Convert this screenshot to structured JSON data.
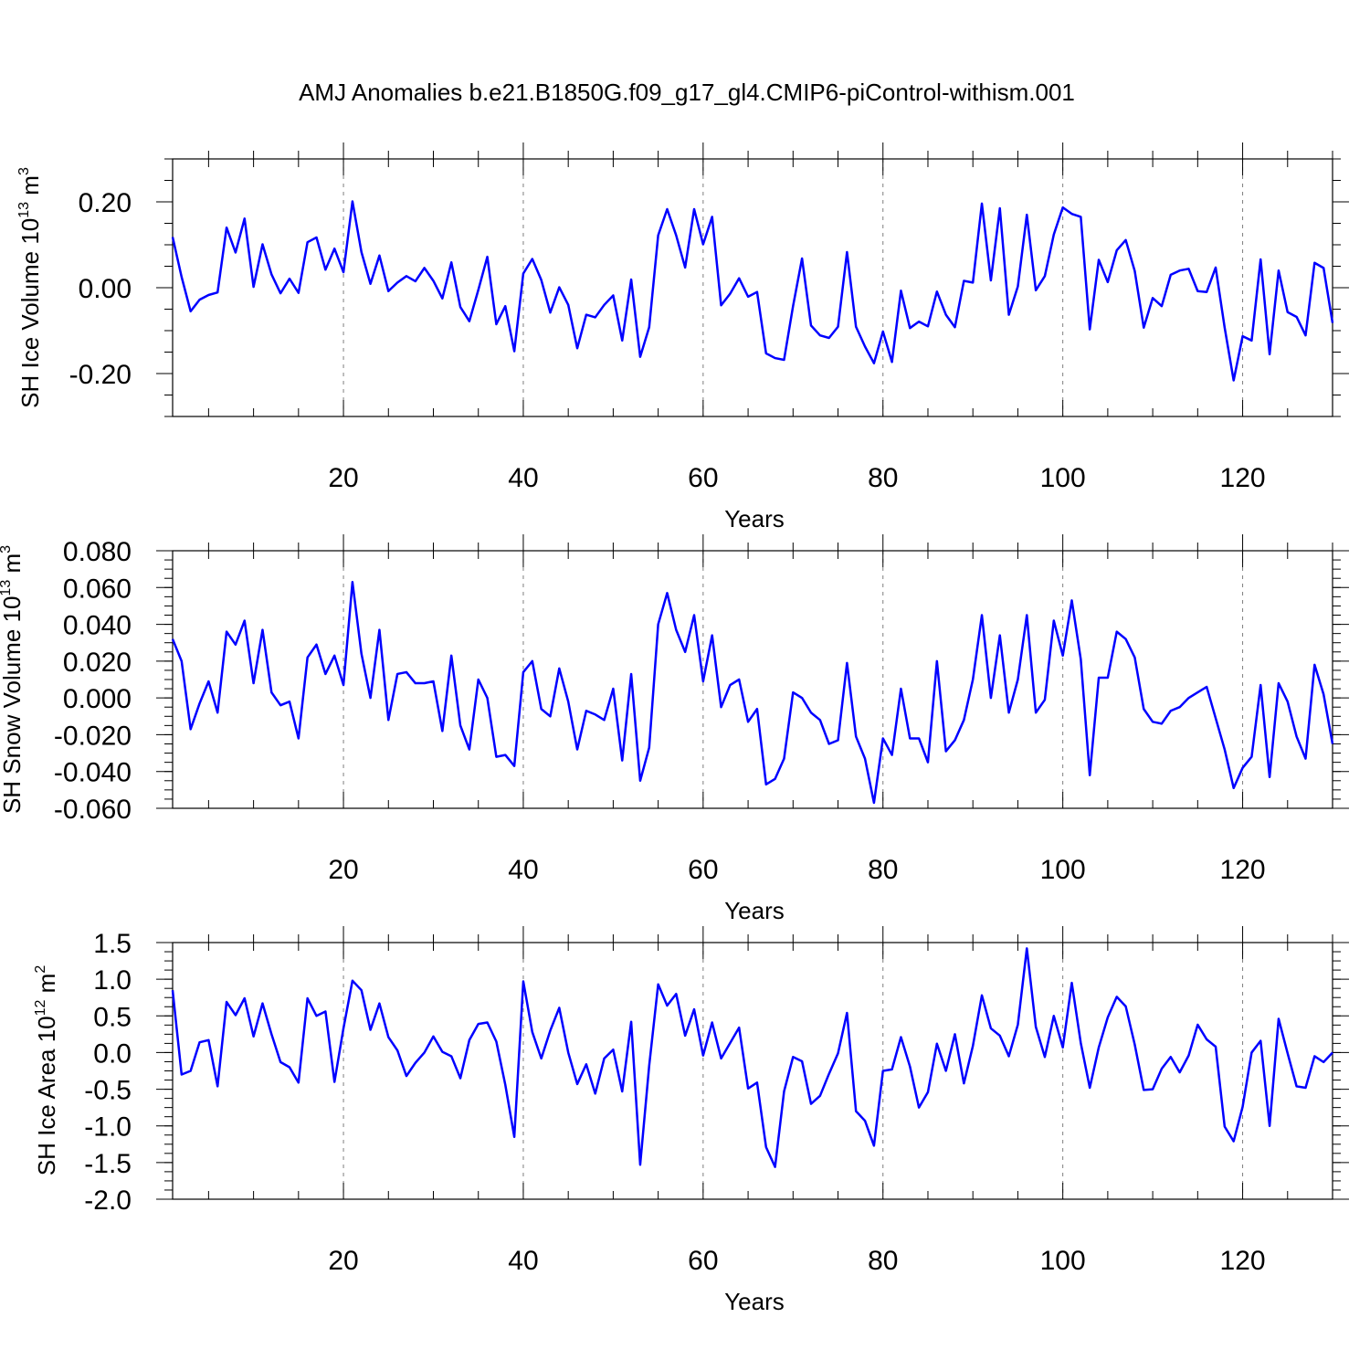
{
  "title": "AMJ Anomalies b.e21.B1850G.f09_g17_gl4.CMIP6-piControl-withism.001",
  "colors": {
    "line": "#0000ff",
    "axis": "#000000",
    "grid": "#7f7f7f"
  },
  "chart_data": [
    {
      "type": "line",
      "id": "ice-volume",
      "title": "AMJ Anomalies b.e21.B1850G.f09_g17_gl4.CMIP6-piControl-withism.001",
      "xlabel": "Years",
      "ylabel": {
        "main": "SH Ice Volume 10",
        "exponent": "13",
        "unit": " m",
        "unit_exponent": "3"
      },
      "xlim": [
        1,
        130
      ],
      "ylim": [
        -0.3,
        0.3
      ],
      "xticks": [
        20,
        40,
        60,
        80,
        100,
        120
      ],
      "xtick_labels": [
        "20",
        "40",
        "60",
        "80",
        "100",
        "120"
      ],
      "yticks": [
        -0.2,
        0.0,
        0.2
      ],
      "ytick_labels": [
        "-0.20",
        "0.00",
        "0.20"
      ],
      "grid": "vertical dashed at major x ticks",
      "series": [
        {
          "name": "SH Ice Volume",
          "values": [
            0.118,
            0.025,
            -0.055,
            -0.028,
            -0.017,
            -0.011,
            0.14,
            0.082,
            0.161,
            0.002,
            0.101,
            0.031,
            -0.013,
            0.021,
            -0.012,
            0.106,
            0.117,
            0.042,
            0.091,
            0.036,
            0.201,
            0.083,
            0.009,
            0.075,
            -0.008,
            0.012,
            0.027,
            0.015,
            0.046,
            0.016,
            -0.025,
            0.059,
            -0.045,
            -0.078,
            -0.005,
            0.072,
            -0.085,
            -0.043,
            -0.148,
            0.033,
            0.067,
            0.018,
            -0.058,
            0.001,
            -0.04,
            -0.141,
            -0.063,
            -0.069,
            -0.04,
            -0.018,
            -0.123,
            0.019,
            -0.161,
            -0.092,
            0.122,
            0.183,
            0.122,
            0.047,
            0.183,
            0.101,
            0.165,
            -0.041,
            -0.014,
            0.022,
            -0.021,
            -0.01,
            -0.153,
            -0.164,
            -0.168,
            -0.043,
            0.068,
            -0.088,
            -0.111,
            -0.117,
            -0.091,
            0.083,
            -0.091,
            -0.137,
            -0.176,
            -0.102,
            -0.173,
            -0.007,
            -0.094,
            -0.079,
            -0.09,
            -0.009,
            -0.063,
            -0.092,
            0.016,
            0.012,
            0.196,
            0.017,
            0.185,
            -0.063,
            0.003,
            0.17,
            -0.006,
            0.027,
            0.124,
            0.187,
            0.172,
            0.165,
            -0.097,
            0.065,
            0.013,
            0.087,
            0.111,
            0.039,
            -0.093,
            -0.024,
            -0.043,
            0.03,
            0.04,
            0.044,
            -0.008,
            -0.01,
            0.047,
            -0.093,
            -0.216,
            -0.113,
            -0.123,
            0.066,
            -0.155,
            0.04,
            -0.057,
            -0.068,
            -0.111,
            0.058,
            0.046,
            -0.082
          ]
        }
      ]
    },
    {
      "type": "line",
      "id": "snow-volume",
      "xlabel": "Years",
      "ylabel": {
        "main": "SH Snow Volume 10",
        "exponent": "13",
        "unit": " m",
        "unit_exponent": "3"
      },
      "xlim": [
        1,
        130
      ],
      "ylim": [
        -0.06,
        0.08
      ],
      "xticks": [
        20,
        40,
        60,
        80,
        100,
        120
      ],
      "xtick_labels": [
        "20",
        "40",
        "60",
        "80",
        "100",
        "120"
      ],
      "yticks": [
        -0.06,
        -0.04,
        -0.02,
        0.0,
        0.02,
        0.04,
        0.06,
        0.08
      ],
      "ytick_labels": [
        "-0.060",
        "-0.040",
        "-0.020",
        "0.000",
        "0.020",
        "0.040",
        "0.060",
        "0.080"
      ],
      "grid": "vertical dashed at major x ticks",
      "series": [
        {
          "name": "SH Snow Volume",
          "values": [
            0.032,
            0.02,
            -0.017,
            -0.003,
            0.009,
            -0.008,
            0.036,
            0.029,
            0.042,
            0.008,
            0.037,
            0.003,
            -0.004,
            -0.002,
            -0.022,
            0.022,
            0.029,
            0.013,
            0.023,
            0.007,
            0.063,
            0.024,
            0.0,
            0.037,
            -0.012,
            0.013,
            0.014,
            0.008,
            0.008,
            0.009,
            -0.018,
            0.023,
            -0.015,
            -0.028,
            0.01,
            0.0,
            -0.032,
            -0.031,
            -0.037,
            0.014,
            0.02,
            -0.006,
            -0.01,
            0.016,
            -0.002,
            -0.028,
            -0.007,
            -0.009,
            -0.012,
            0.005,
            -0.034,
            0.013,
            -0.045,
            -0.027,
            0.04,
            0.057,
            0.037,
            0.025,
            0.045,
            0.009,
            0.034,
            -0.005,
            0.007,
            0.01,
            -0.013,
            -0.006,
            -0.047,
            -0.044,
            -0.033,
            0.003,
            0.0,
            -0.008,
            -0.012,
            -0.025,
            -0.023,
            0.019,
            -0.021,
            -0.033,
            -0.057,
            -0.022,
            -0.031,
            0.005,
            -0.022,
            -0.022,
            -0.035,
            0.02,
            -0.029,
            -0.023,
            -0.012,
            0.01,
            0.045,
            0.0,
            0.034,
            -0.008,
            0.01,
            0.045,
            -0.008,
            -0.001,
            0.042,
            0.023,
            0.053,
            0.021,
            -0.042,
            0.011,
            0.011,
            0.036,
            0.032,
            0.022,
            -0.006,
            -0.013,
            -0.014,
            -0.007,
            -0.005,
            0.0,
            0.003,
            0.006,
            -0.011,
            -0.028,
            -0.049,
            -0.038,
            -0.032,
            0.007,
            -0.043,
            0.008,
            -0.002,
            -0.021,
            -0.033,
            0.018,
            0.002,
            -0.025
          ]
        }
      ]
    },
    {
      "type": "line",
      "id": "ice-area",
      "xlabel": "Years",
      "ylabel": {
        "main": "SH Ice Area 10",
        "exponent": "12",
        "unit": " m",
        "unit_exponent": "2"
      },
      "xlim": [
        1,
        130
      ],
      "ylim": [
        -2.0,
        1.5
      ],
      "xticks": [
        20,
        40,
        60,
        80,
        100,
        120
      ],
      "xtick_labels": [
        "20",
        "40",
        "60",
        "80",
        "100",
        "120"
      ],
      "yticks": [
        -2.0,
        -1.5,
        -1.0,
        -0.5,
        0.0,
        0.5,
        1.0,
        1.5
      ],
      "ytick_labels": [
        "-2.0",
        "-1.5",
        "-1.0",
        "-0.5",
        "0.0",
        "0.5",
        "1.0",
        "1.5"
      ],
      "grid": "vertical dashed at major x ticks",
      "series": [
        {
          "name": "SH Ice Area",
          "values": [
            0.85,
            -0.3,
            -0.25,
            0.14,
            0.17,
            -0.46,
            0.69,
            0.51,
            0.74,
            0.22,
            0.67,
            0.25,
            -0.13,
            -0.2,
            -0.41,
            0.74,
            0.5,
            0.56,
            -0.4,
            0.33,
            0.98,
            0.85,
            0.31,
            0.67,
            0.21,
            0.03,
            -0.32,
            -0.14,
            0.0,
            0.22,
            0.01,
            -0.05,
            -0.35,
            0.17,
            0.39,
            0.41,
            0.15,
            -0.44,
            -1.15,
            0.97,
            0.28,
            -0.08,
            0.3,
            0.61,
            0.0,
            -0.43,
            -0.16,
            -0.56,
            -0.08,
            0.04,
            -0.53,
            0.42,
            -1.53,
            -0.18,
            0.93,
            0.64,
            0.8,
            0.23,
            0.59,
            -0.04,
            0.41,
            -0.08,
            0.13,
            0.34,
            -0.49,
            -0.41,
            -1.29,
            -1.56,
            -0.53,
            -0.06,
            -0.12,
            -0.7,
            -0.59,
            -0.29,
            -0.01,
            0.54,
            -0.8,
            -0.93,
            -1.27,
            -0.25,
            -0.23,
            0.21,
            -0.19,
            -0.75,
            -0.54,
            0.12,
            -0.25,
            0.25,
            -0.42,
            0.09,
            0.78,
            0.33,
            0.23,
            -0.05,
            0.38,
            1.42,
            0.35,
            -0.06,
            0.5,
            0.07,
            0.95,
            0.13,
            -0.48,
            0.07,
            0.48,
            0.76,
            0.63,
            0.11,
            -0.51,
            -0.5,
            -0.22,
            -0.06,
            -0.27,
            -0.04,
            0.38,
            0.18,
            0.08,
            -1.01,
            -1.21,
            -0.74,
            0.0,
            0.16,
            -1.0,
            0.46,
            -0.01,
            -0.46,
            -0.48,
            -0.05,
            -0.13,
            0.0
          ]
        }
      ]
    }
  ]
}
